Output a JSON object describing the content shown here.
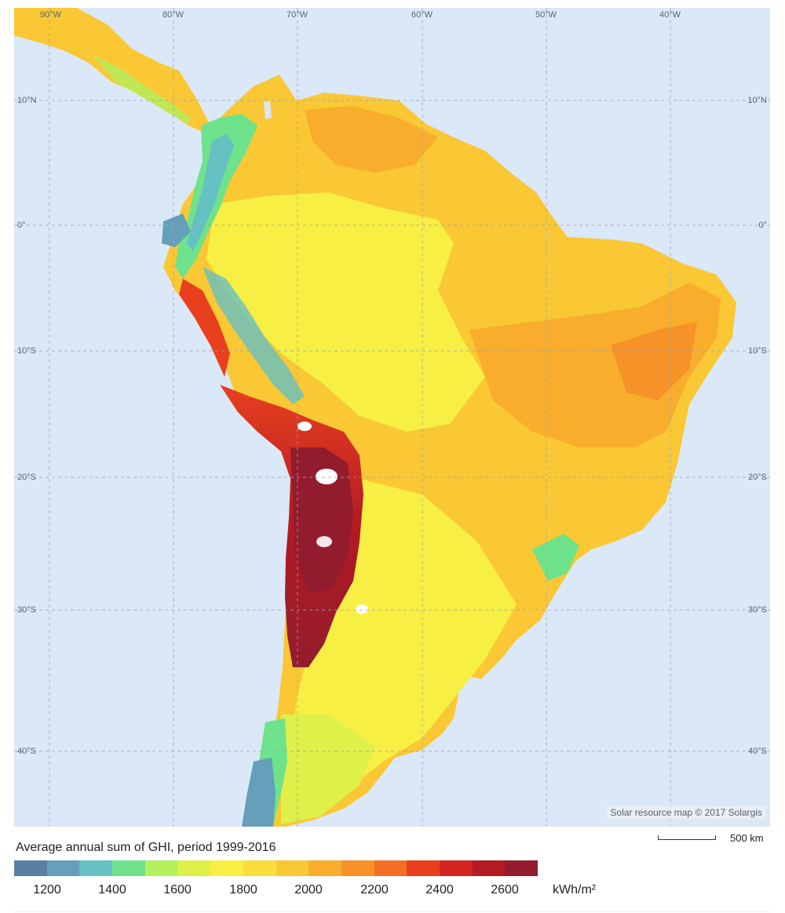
{
  "map": {
    "attribution": "Solar resource map © 2017 Solargis",
    "longitude_labels": [
      "90°W",
      "80°W",
      "70°W",
      "60°W",
      "50°W",
      "40°W"
    ],
    "latitude_labels": [
      "10°N",
      "0°",
      "10°S",
      "20°S",
      "30°S",
      "40°S"
    ]
  },
  "legend": {
    "title": "Average annual sum of GHI, period 1999-2016",
    "unit": "kWh/m²",
    "tick_labels": [
      "1200",
      "1400",
      "1600",
      "1800",
      "2000",
      "2200",
      "2400",
      "2600"
    ],
    "colors": [
      "#5b7fa3",
      "#659fba",
      "#66c1c2",
      "#6fe28c",
      "#b4ef5e",
      "#dff04a",
      "#f8ef45",
      "#fbde3e",
      "#f9c834",
      "#f8ad2c",
      "#f69228",
      "#f36f24",
      "#e8401f",
      "#d3241f",
      "#b31a24",
      "#921c2d"
    ]
  },
  "scale_bar": {
    "label": "500 km"
  }
}
